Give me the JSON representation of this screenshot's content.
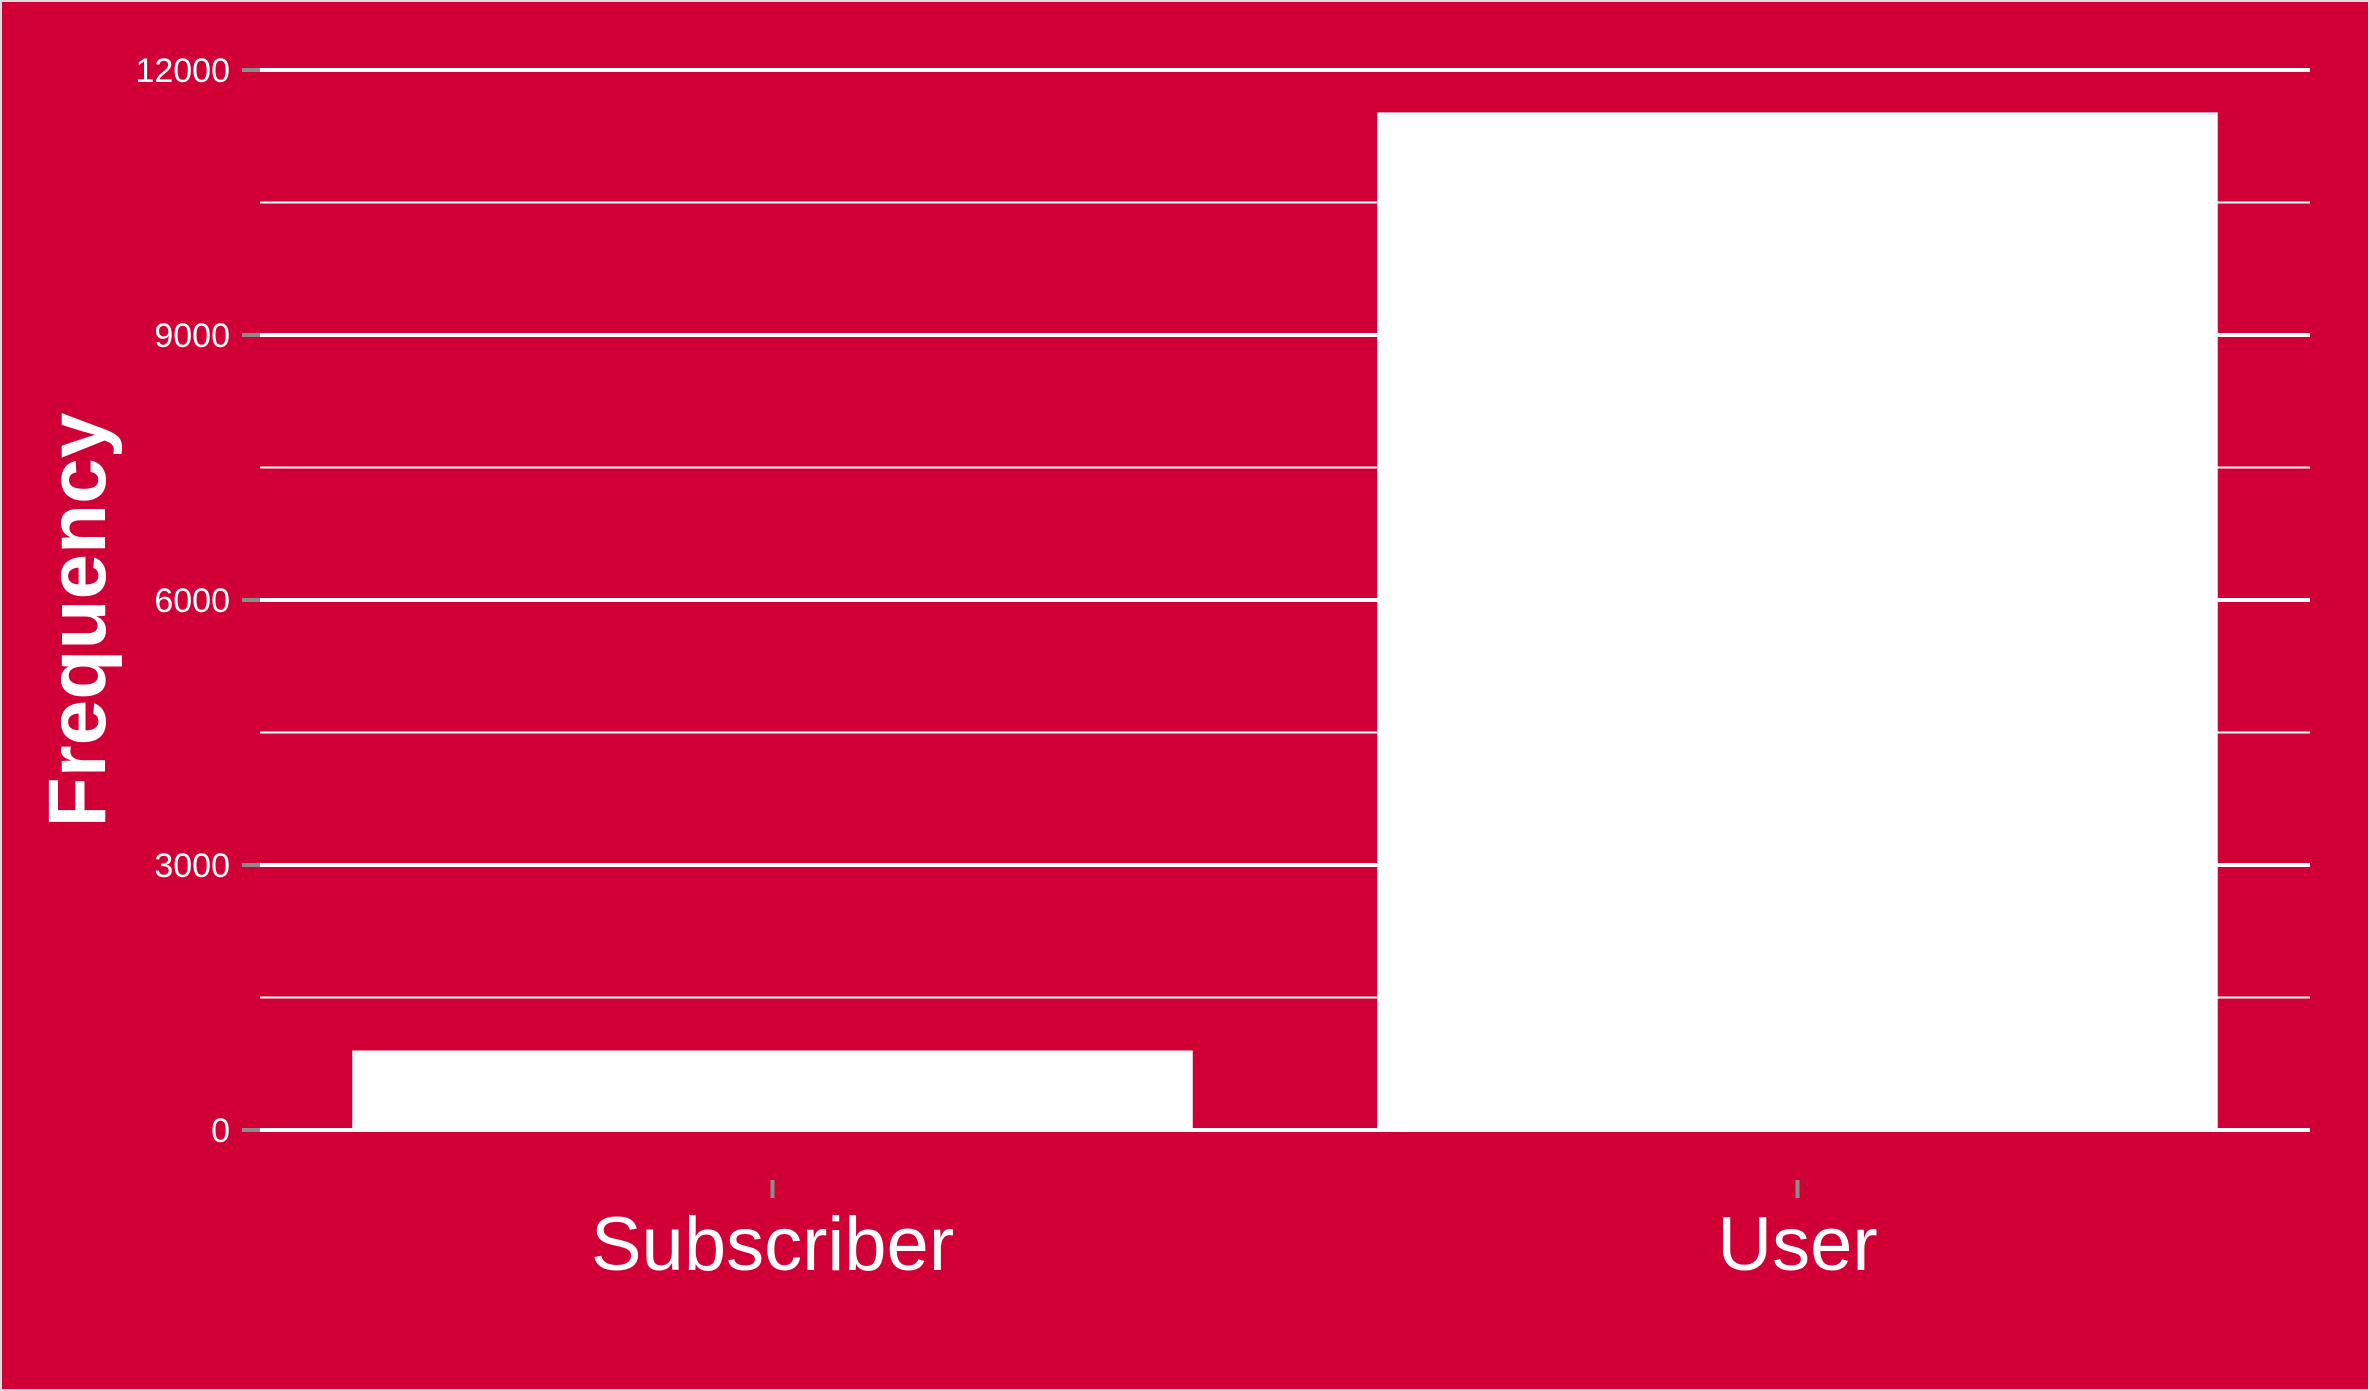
{
  "chart_data": {
    "type": "bar",
    "title": "",
    "xlabel": "",
    "ylabel": "Frequency",
    "categories": [
      "Subscriber",
      "User"
    ],
    "values": [
      900,
      11520
    ],
    "ylim": [
      0,
      12000
    ],
    "yticks": [
      0,
      3000,
      6000,
      9000,
      12000
    ],
    "yticks_labels": [
      "0",
      "3000",
      "6000",
      "9000",
      "12000"
    ],
    "grid": true,
    "legend": "none"
  },
  "colors": {
    "background": "#D00036",
    "bar_fill": "#FFFFFF",
    "gridline": "#FFFFFF",
    "tick_mark": "#8C8C8C",
    "text": "#FFFFFF"
  }
}
